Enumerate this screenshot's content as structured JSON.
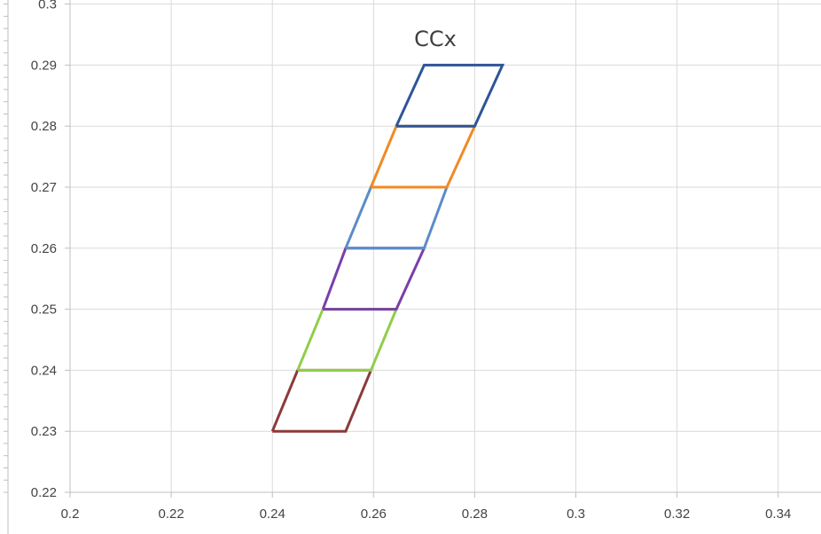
{
  "chart_data": {
    "type": "line",
    "title": "CCx",
    "xlabel": "",
    "ylabel": "",
    "xlim": [
      0.2,
      0.35
    ],
    "ylim": [
      0.22,
      0.3
    ],
    "x_ticks": [
      0.2,
      0.22,
      0.24,
      0.26,
      0.28,
      0.3,
      0.32,
      0.34
    ],
    "x_tick_labels": [
      "0.2",
      "0.22",
      "0.24",
      "0.26",
      "0.28",
      "0.3",
      "0.32",
      "0.34"
    ],
    "y_ticks": [
      0.22,
      0.23,
      0.24,
      0.25,
      0.26,
      0.27,
      0.28,
      0.29,
      0.3
    ],
    "y_tick_labels": [
      "0.22",
      "0.23",
      "0.24",
      "0.25",
      "0.26",
      "0.27",
      "0.28",
      "0.29",
      "0.3"
    ],
    "grid": true,
    "legend": "none",
    "series": [
      {
        "color": "#8b3a3a",
        "x": [
          0.24,
          0.2545,
          0.2595,
          0.245,
          0.24
        ],
        "y": [
          0.23,
          0.23,
          0.24,
          0.24,
          0.23
        ]
      },
      {
        "color": "#8fce4a",
        "x": [
          0.245,
          0.2595,
          0.2645,
          0.25,
          0.245
        ],
        "y": [
          0.24,
          0.24,
          0.25,
          0.25,
          0.24
        ]
      },
      {
        "color": "#7a3fa8",
        "x": [
          0.25,
          0.2645,
          0.27,
          0.2545,
          0.25
        ],
        "y": [
          0.25,
          0.25,
          0.26,
          0.26,
          0.25
        ]
      },
      {
        "color": "#5b8cc8",
        "x": [
          0.2545,
          0.27,
          0.2745,
          0.2595,
          0.2545
        ],
        "y": [
          0.26,
          0.26,
          0.27,
          0.27,
          0.26
        ]
      },
      {
        "color": "#f08a24",
        "x": [
          0.2595,
          0.2745,
          0.28,
          0.2645,
          0.2595
        ],
        "y": [
          0.27,
          0.27,
          0.28,
          0.28,
          0.27
        ]
      },
      {
        "color": "#2f5597",
        "x": [
          0.2645,
          0.28,
          0.2855,
          0.27,
          0.2645
        ],
        "y": [
          0.28,
          0.28,
          0.29,
          0.29,
          0.28
        ]
      }
    ]
  }
}
